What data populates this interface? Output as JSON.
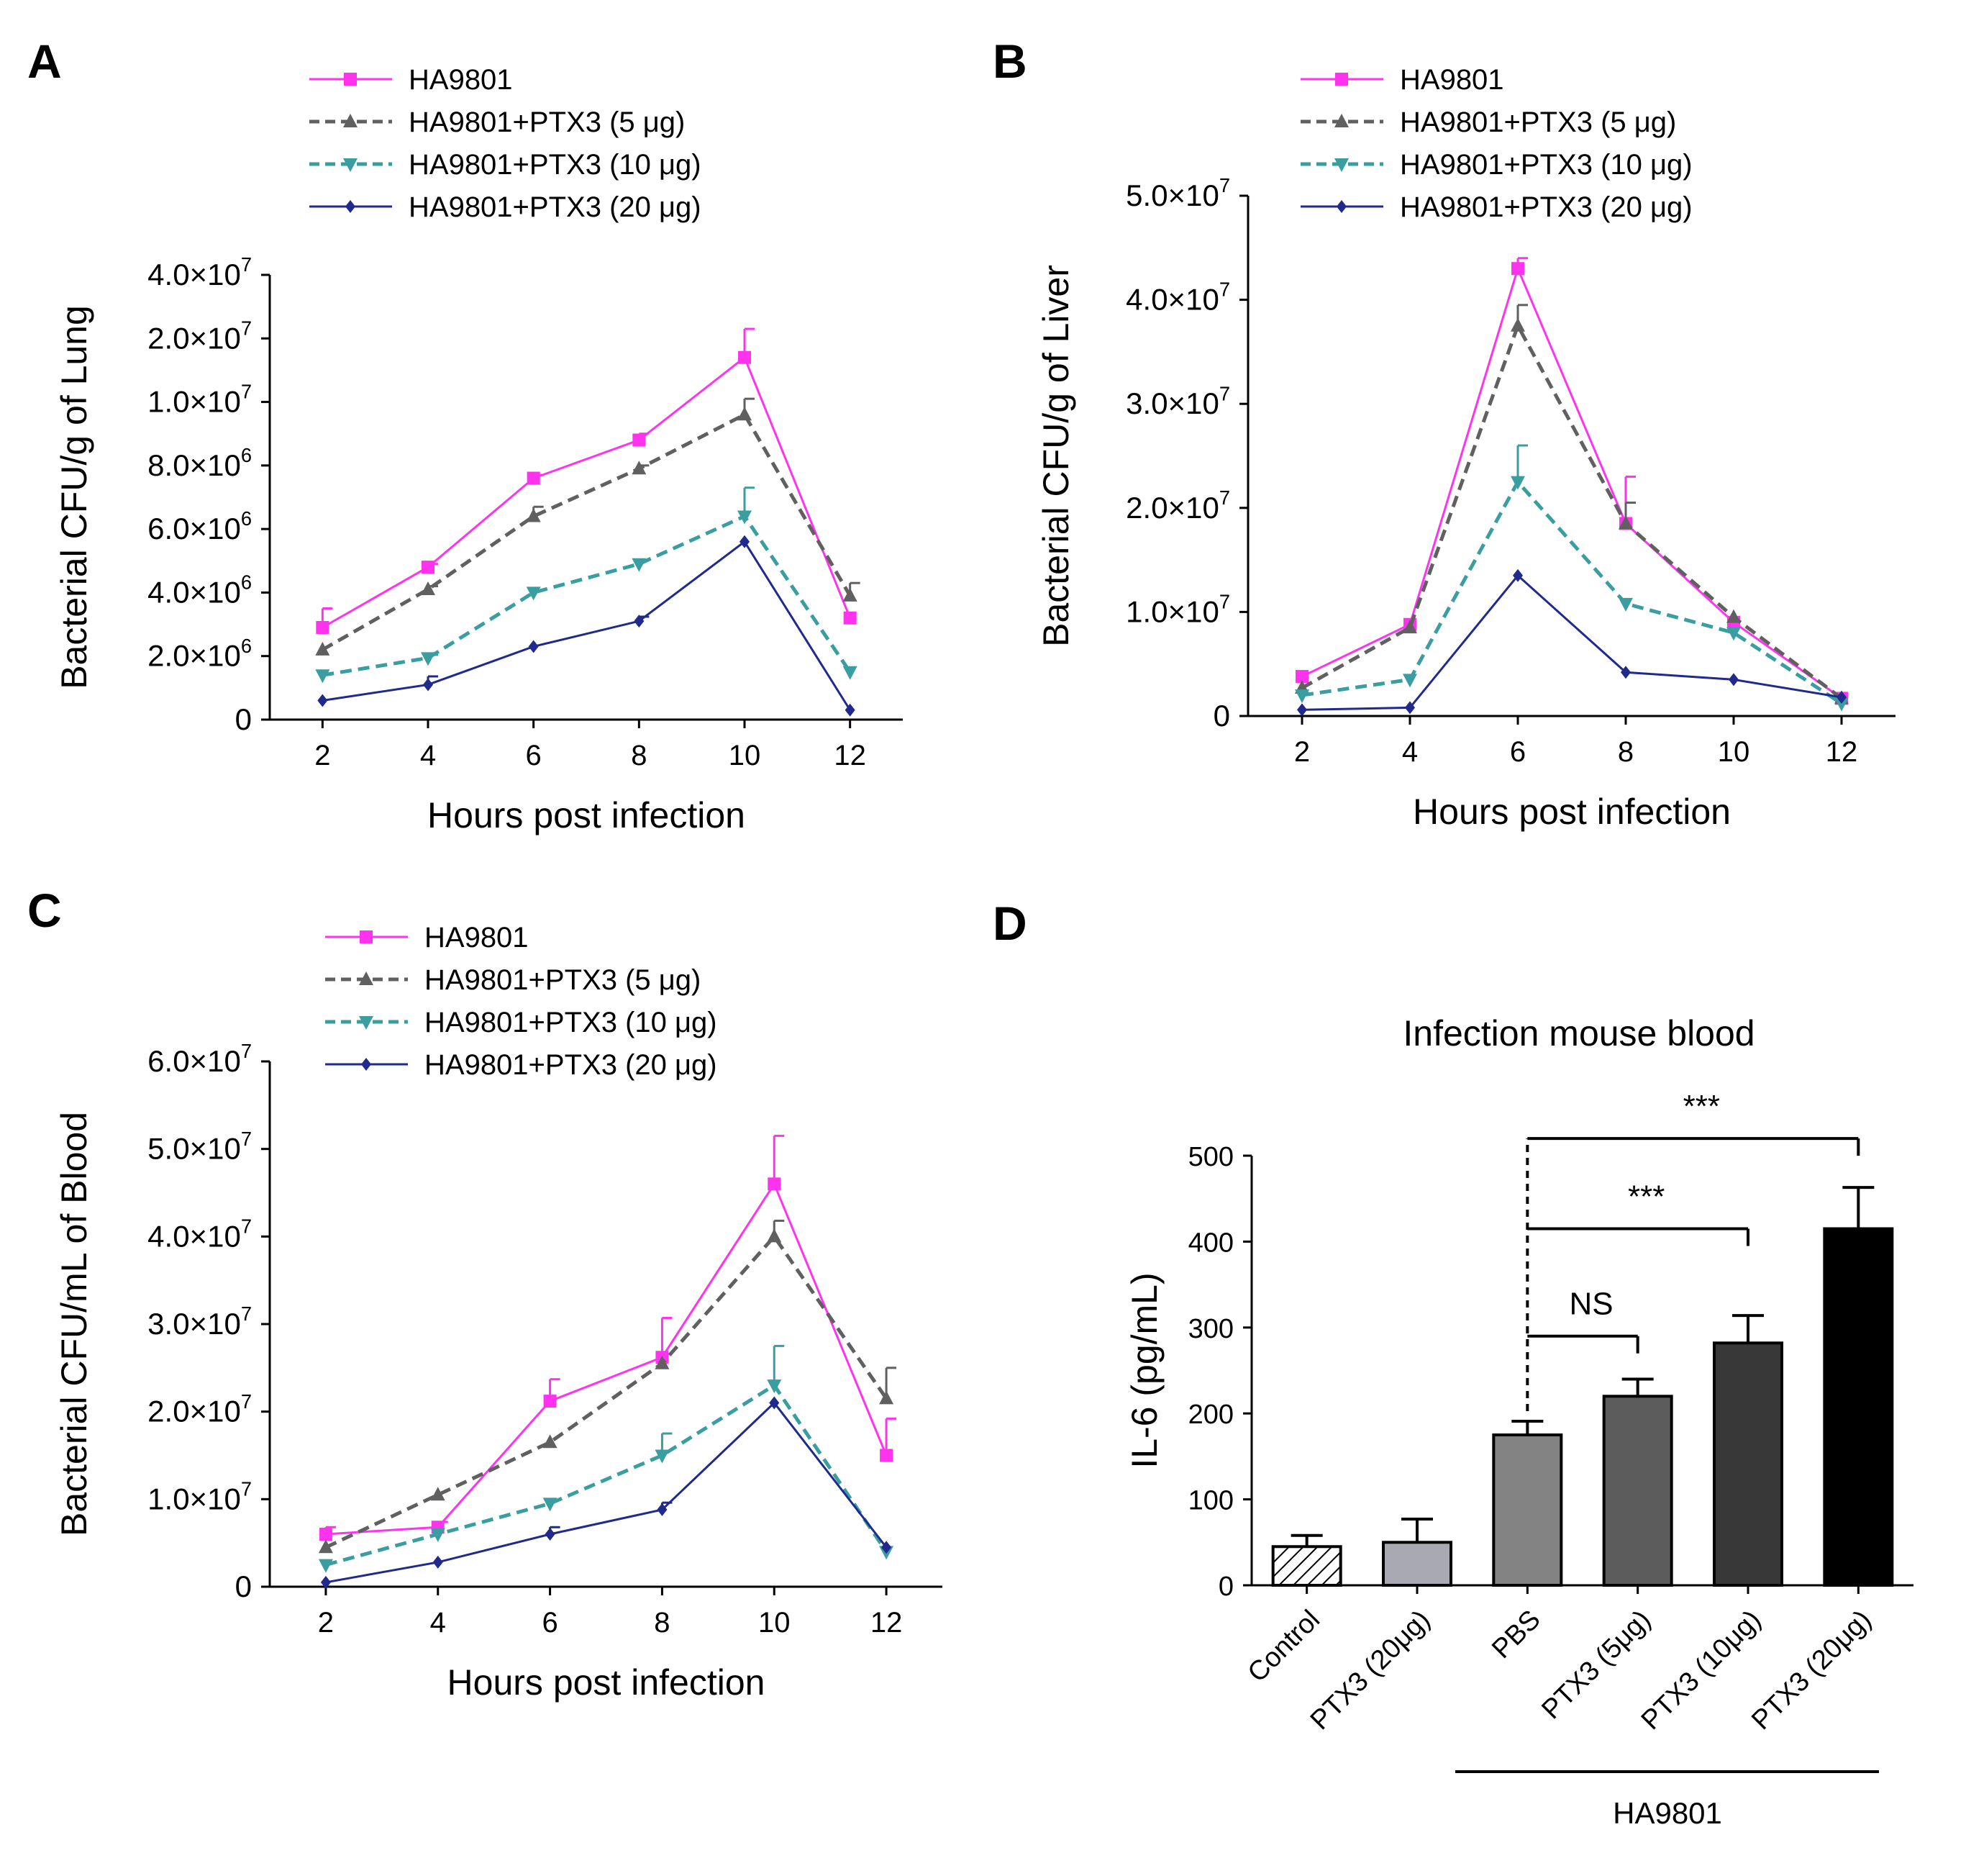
{
  "colors": {
    "HA9801": "#ff33ee",
    "PTX3_5": "#606060",
    "PTX3_10": "#3a9ea0",
    "PTX3_20": "#1f2a8c",
    "axis": "#000000"
  },
  "chart_data": [
    {
      "id": "A",
      "type": "line",
      "panel_label": "A",
      "xlabel": "Hours post infection",
      "ylabel": "Bacterial CFU/g of Lung",
      "x": [
        2,
        4,
        6,
        8,
        10,
        12
      ],
      "x_ticks": [
        "2",
        "4",
        "6",
        "8",
        "10",
        "12"
      ],
      "y_tick_labels": [
        {
          "base": "0",
          "exp": ""
        },
        {
          "base": "2.0×10",
          "exp": "6"
        },
        {
          "base": "4.0×10",
          "exp": "6"
        },
        {
          "base": "6.0×10",
          "exp": "6"
        },
        {
          "base": "8.0×10",
          "exp": "6"
        },
        {
          "base": "1.0×10",
          "exp": "7"
        },
        {
          "base": "2.0×10",
          "exp": "7"
        },
        {
          "base": "4.0×10",
          "exp": "7"
        }
      ],
      "y_scale_note": "broken axis: ticks are equally spaced; values given in tick-index units (1 tick = 2.0e6 up to 1.0e7)",
      "y_range": [
        0,
        7
      ],
      "legend": [
        "HA9801",
        "HA9801+PTX3 (5 μg)",
        "HA9801+PTX3 (10 μg)",
        "HA9801+PTX3 (20 μg)"
      ],
      "series": [
        {
          "name": "HA9801",
          "color_key": "HA9801",
          "marker": "square",
          "dash": "solid",
          "values": [
            1.45,
            2.4,
            3.8,
            4.4,
            5.7,
            1.6
          ],
          "errors": [
            0.3,
            0.05,
            0.05,
            0.1,
            0.45,
            0
          ]
        },
        {
          "name": "HA9801+PTX3 (5 μg)",
          "color_key": "PTX3_5",
          "marker": "triangle",
          "dash": "dashed",
          "values": [
            1.1,
            2.05,
            3.2,
            3.95,
            4.8,
            1.95
          ],
          "errors": [
            0,
            0.05,
            0.15,
            0.05,
            0.25,
            0.2
          ]
        },
        {
          "name": "HA9801+PTX3 (10 μg)",
          "color_key": "PTX3_10",
          "marker": "triangle-down",
          "dash": "dashed",
          "values": [
            0.7,
            0.97,
            2.0,
            2.45,
            3.2,
            0.75
          ],
          "errors": [
            0,
            0.05,
            0,
            0,
            0.45,
            0
          ]
        },
        {
          "name": "HA9801+PTX3 (20 μg)",
          "color_key": "PTX3_20",
          "marker": "diamond",
          "dash": "solid",
          "values": [
            0.3,
            0.55,
            1.15,
            1.55,
            2.8,
            0.15
          ],
          "errors": [
            0,
            0.13,
            0,
            0.07,
            0,
            0
          ]
        }
      ]
    },
    {
      "id": "B",
      "type": "line",
      "panel_label": "B",
      "xlabel": "Hours post infection",
      "ylabel": "Bacterial CFU/g of Liver",
      "x": [
        2,
        4,
        6,
        8,
        10,
        12
      ],
      "x_ticks": [
        "2",
        "4",
        "6",
        "8",
        "10",
        "12"
      ],
      "y_tick_labels": [
        {
          "base": "0",
          "exp": ""
        },
        {
          "base": "1.0×10",
          "exp": "7"
        },
        {
          "base": "2.0×10",
          "exp": "7"
        },
        {
          "base": "3.0×10",
          "exp": "7"
        },
        {
          "base": "4.0×10",
          "exp": "7"
        },
        {
          "base": "5.0×10",
          "exp": "7"
        }
      ],
      "y_scale_note": "values in units of 1.0e7 CFU/g",
      "y_range": [
        0,
        5
      ],
      "legend": [
        "HA9801",
        "HA9801+PTX3 (5 μg)",
        "HA9801+PTX3 (10 μg)",
        "HA9801+PTX3 (20 μg)"
      ],
      "series": [
        {
          "name": "HA9801",
          "color_key": "HA9801",
          "marker": "square",
          "dash": "solid",
          "values": [
            0.38,
            0.88,
            4.3,
            1.85,
            0.9,
            0.17
          ],
          "errors": [
            0,
            0,
            0.1,
            0.45,
            0,
            0
          ]
        },
        {
          "name": "HA9801+PTX3 (5 μg)",
          "color_key": "PTX3_5",
          "marker": "triangle",
          "dash": "dashed",
          "values": [
            0.27,
            0.85,
            3.75,
            1.85,
            0.95,
            0.17
          ],
          "errors": [
            0,
            0,
            0.2,
            0.2,
            0,
            0
          ]
        },
        {
          "name": "HA9801+PTX3 (10 μg)",
          "color_key": "PTX3_10",
          "marker": "triangle-down",
          "dash": "dashed",
          "values": [
            0.2,
            0.35,
            2.25,
            1.08,
            0.8,
            0.12
          ],
          "errors": [
            0,
            0,
            0.35,
            0,
            0,
            0
          ]
        },
        {
          "name": "HA9801+PTX3 (20 μg)",
          "color_key": "PTX3_20",
          "marker": "diamond",
          "dash": "solid",
          "values": [
            0.06,
            0.08,
            1.35,
            0.42,
            0.35,
            0.18
          ],
          "errors": [
            0,
            0,
            0,
            0,
            0,
            0
          ]
        }
      ]
    },
    {
      "id": "C",
      "type": "line",
      "panel_label": "C",
      "xlabel": "Hours post infection",
      "ylabel": "Bacterial CFU/mL of Blood",
      "x": [
        2,
        4,
        6,
        8,
        10,
        12
      ],
      "x_ticks": [
        "2",
        "4",
        "6",
        "8",
        "10",
        "12"
      ],
      "y_tick_labels": [
        {
          "base": "0",
          "exp": ""
        },
        {
          "base": "1.0×10",
          "exp": "7"
        },
        {
          "base": "2.0×10",
          "exp": "7"
        },
        {
          "base": "3.0×10",
          "exp": "7"
        },
        {
          "base": "4.0×10",
          "exp": "7"
        },
        {
          "base": "5.0×10",
          "exp": "7"
        },
        {
          "base": "6.0×10",
          "exp": "7"
        }
      ],
      "y_scale_note": "values in units of 1.0e7 CFU/mL",
      "y_range": [
        0,
        6
      ],
      "legend": [
        "HA9801",
        "HA9801+PTX3 (5 μg)",
        "HA9801+PTX3 (10 μg)",
        "HA9801+PTX3 (20 μg)"
      ],
      "series": [
        {
          "name": "HA9801",
          "color_key": "HA9801",
          "marker": "square",
          "dash": "solid",
          "values": [
            0.6,
            0.68,
            2.12,
            2.62,
            4.6,
            1.5
          ],
          "errors": [
            0.08,
            0.06,
            0.25,
            0.45,
            0.55,
            0.42
          ]
        },
        {
          "name": "HA9801+PTX3 (5 μg)",
          "color_key": "PTX3_5",
          "marker": "triangle",
          "dash": "dashed",
          "values": [
            0.45,
            1.05,
            1.65,
            2.55,
            4.0,
            2.15
          ],
          "errors": [
            0,
            0,
            0,
            0,
            0.18,
            0.35
          ]
        },
        {
          "name": "HA9801+PTX3 (10 μg)",
          "color_key": "PTX3_10",
          "marker": "triangle-down",
          "dash": "dashed",
          "values": [
            0.25,
            0.6,
            0.95,
            1.5,
            2.3,
            0.4
          ],
          "errors": [
            0,
            0,
            0,
            0.25,
            0.45,
            0
          ]
        },
        {
          "name": "HA9801+PTX3 (20 μg)",
          "color_key": "PTX3_20",
          "marker": "diamond",
          "dash": "solid",
          "values": [
            0.05,
            0.28,
            0.6,
            0.88,
            2.1,
            0.45
          ],
          "errors": [
            0,
            0,
            0.08,
            0.08,
            0,
            0
          ]
        }
      ]
    },
    {
      "id": "D",
      "type": "bar",
      "panel_label": "D",
      "title": "Infection mouse blood",
      "ylabel": "IL-6 (pg/mL)",
      "ylim": [
        0,
        500
      ],
      "y_ticks": [
        "0",
        "100",
        "200",
        "300",
        "400",
        "500"
      ],
      "categories": [
        "Control",
        "PTX3 (20μg)",
        "PBS",
        "PTX3 (5μg)",
        "PTX3 (10μg)",
        "PTX3 (20μg)"
      ],
      "values": [
        45,
        50,
        175,
        220,
        282,
        415
      ],
      "errors": [
        13,
        27,
        16,
        20,
        32,
        48
      ],
      "bar_fills": [
        "hatched",
        "#a9a9b1",
        "#838383",
        "#5c5c5c",
        "#383838",
        "#000000"
      ],
      "group_label": "HA9801",
      "significance": [
        {
          "label": "NS",
          "from": "PBS",
          "to": "PTX3 (5μg)"
        },
        {
          "label": "***",
          "from": "PBS",
          "to": "PTX3 (10μg)"
        },
        {
          "label": "***",
          "from": "PBS",
          "to": "PTX3 (20μg)"
        }
      ]
    }
  ]
}
